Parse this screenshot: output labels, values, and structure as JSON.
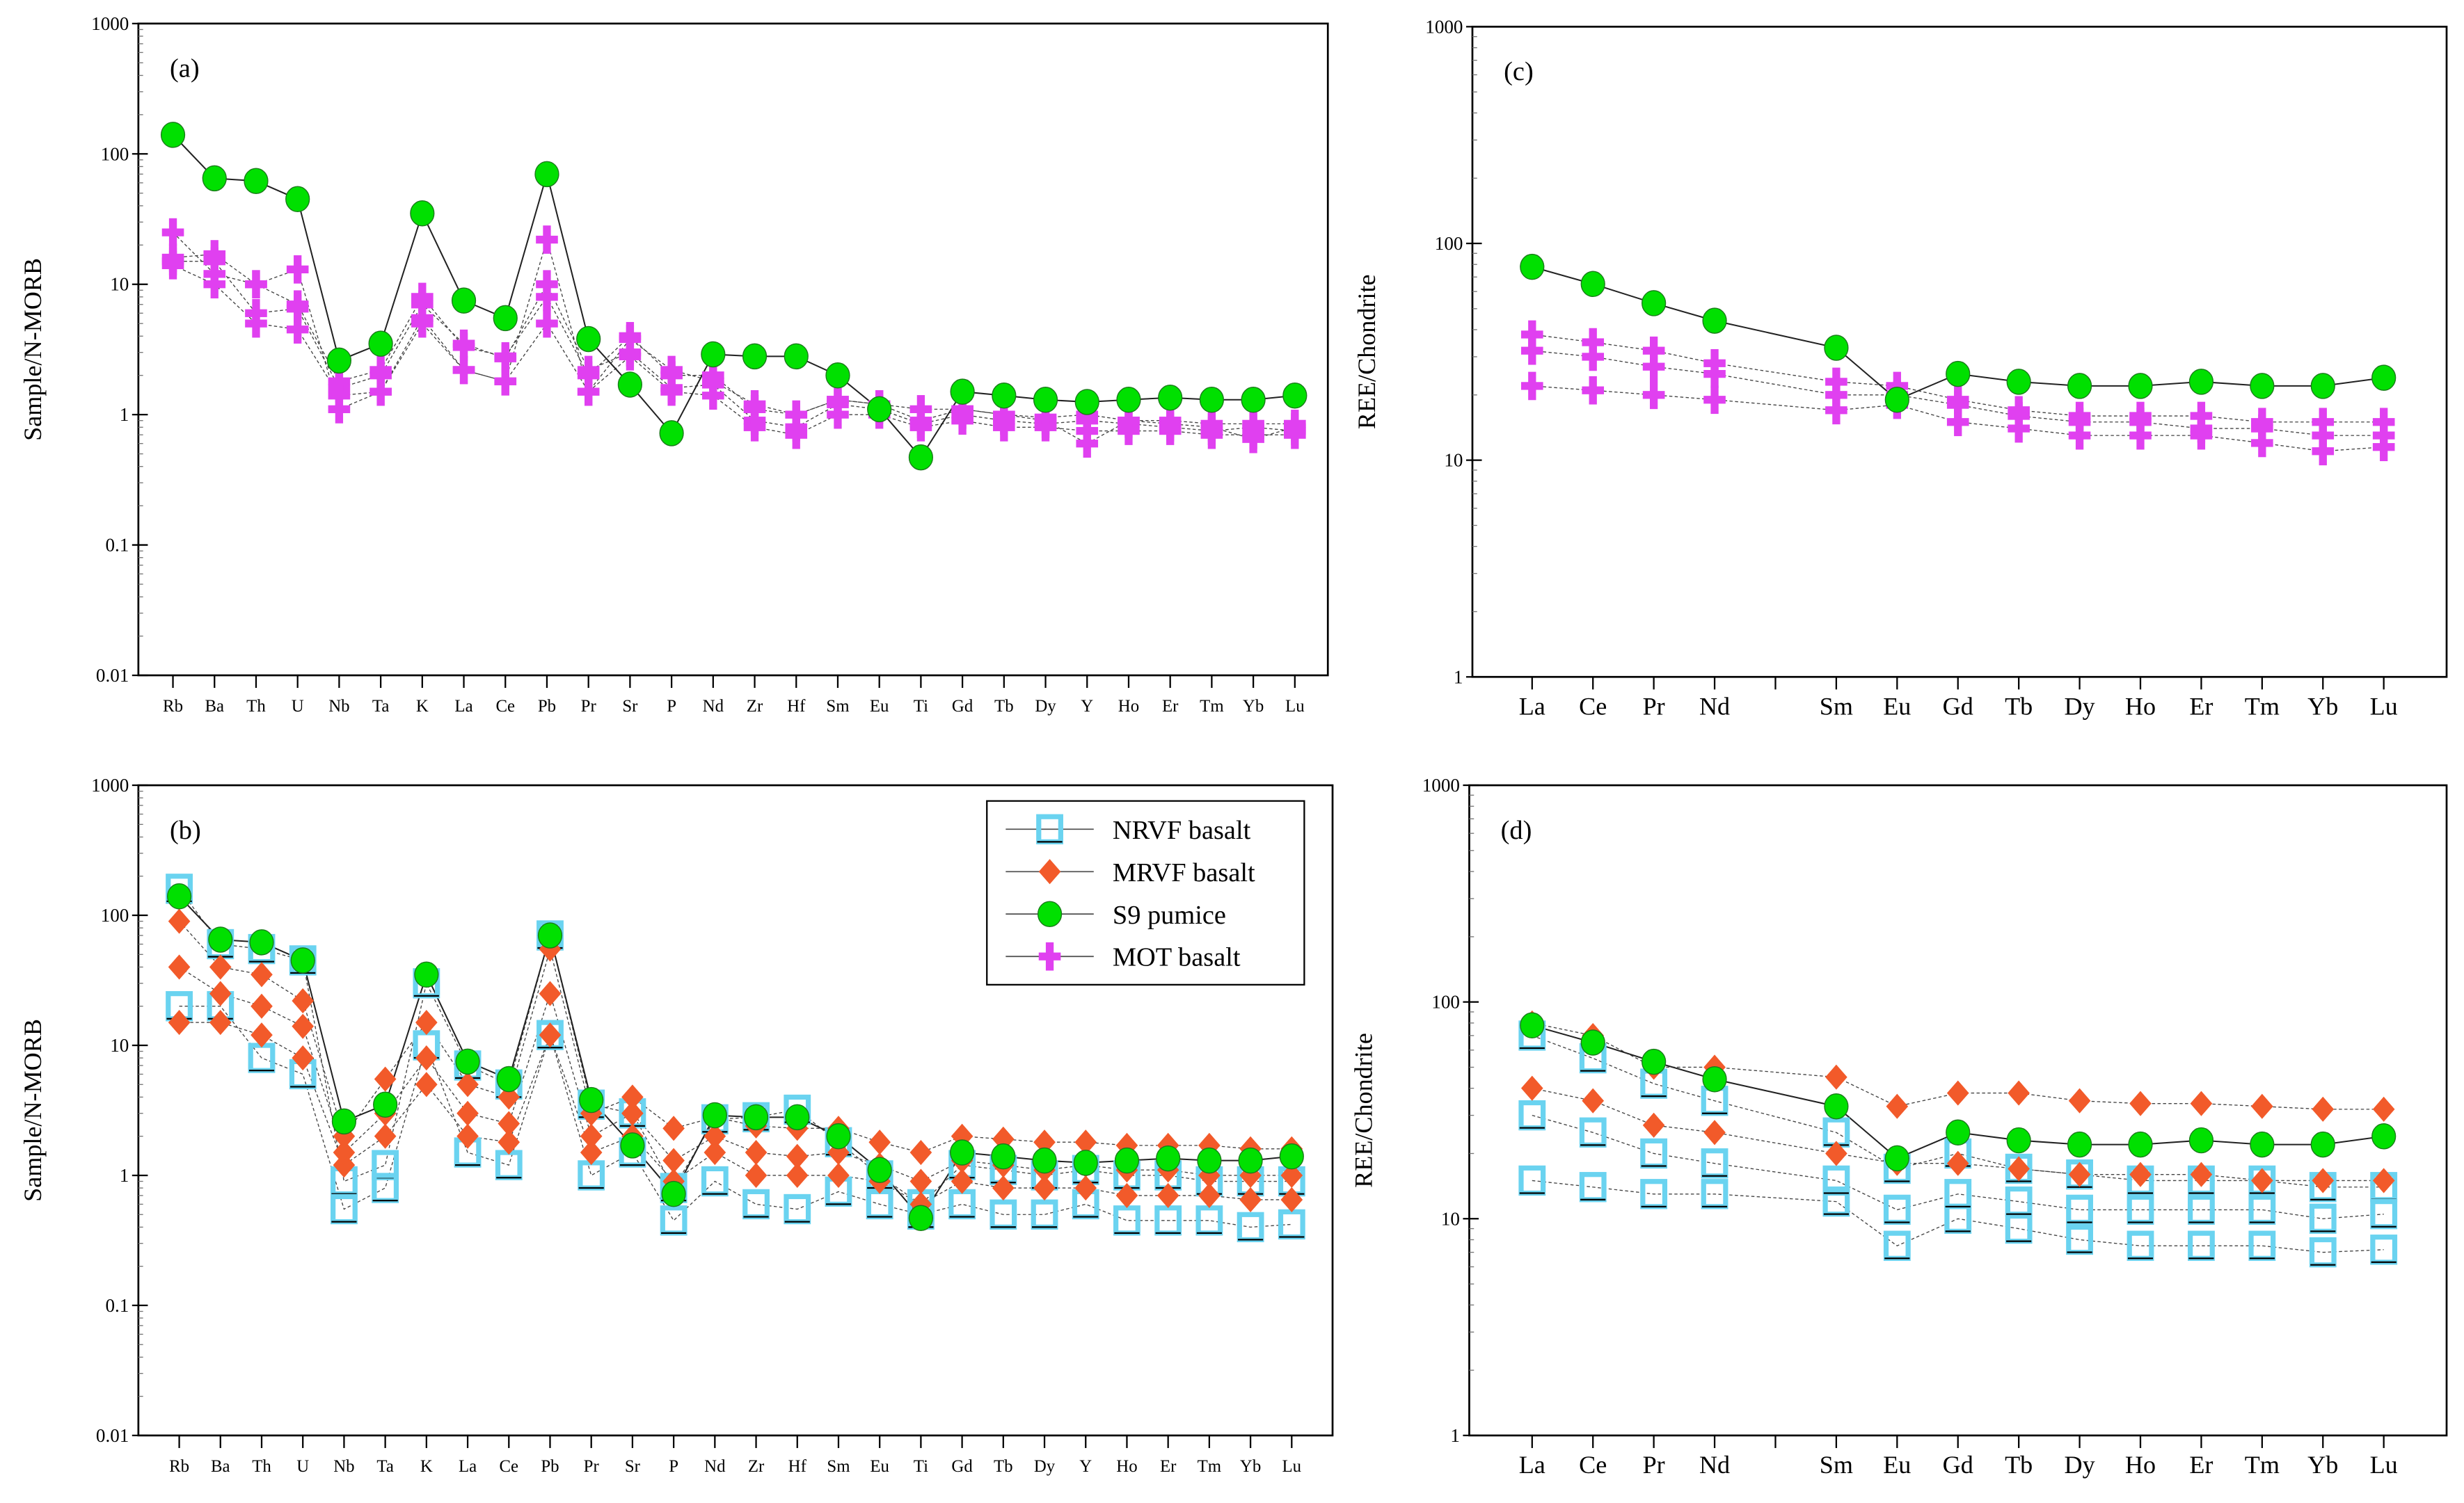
{
  "colors": {
    "nrvf": "#6ad3f0",
    "mrvf": "#f25a2a",
    "s9": "#00e000",
    "mot": "#e040f0"
  },
  "legend": [
    {
      "key": "nrvf",
      "label": "NRVF basalt",
      "marker": "square"
    },
    {
      "key": "mrvf",
      "label": "MRVF basalt",
      "marker": "diamond"
    },
    {
      "key": "s9",
      "label": "S9 pumice",
      "marker": "circle"
    },
    {
      "key": "mot",
      "label": "MOT basalt",
      "marker": "plus"
    }
  ],
  "chart_data": [
    {
      "id": "a",
      "panel_label": "(a)",
      "type": "line",
      "yscale": "log",
      "ylim": [
        0.01,
        1000
      ],
      "ylabel": "Sample/N-MORB",
      "xlabel": "",
      "yticks": [
        "1000",
        "100",
        "10",
        "1",
        "0.1",
        "0.01"
      ],
      "categories": [
        "Rb",
        "Ba",
        "Th",
        "U",
        "Nb",
        "Ta",
        "K",
        "La",
        "Ce",
        "Pb",
        "Pr",
        "Sr",
        "P",
        "Nd",
        "Zr",
        "Hf",
        "Sm",
        "Eu",
        "Ti",
        "Gd",
        "Tb",
        "Dy",
        "Y",
        "Ho",
        "Er",
        "Tm",
        "Yb",
        "Lu"
      ],
      "series": [
        {
          "group": "mot",
          "values": [
            25,
            12,
            10,
            13,
            1.1,
            1.5,
            5,
            2.2,
            1.8,
            22,
            1.5,
            3.8,
            2.2,
            1.8,
            1.2,
            1.0,
            1.3,
            1.2,
            1.1,
            1.1,
            1.0,
            0.9,
            0.6,
            0.9,
            0.85,
            0.8,
            0.65,
            0.8
          ]
        },
        {
          "group": "mot",
          "values": [
            15,
            15,
            6,
            6.5,
            1.6,
            2,
            7,
            3.5,
            2.7,
            10,
            2.2,
            3,
            1.6,
            1.7,
            0.9,
            0.8,
            1.2,
            1.1,
            0.85,
            1.0,
            0.9,
            0.85,
            0.9,
            0.85,
            0.8,
            0.75,
            0.8,
            0.75
          ]
        },
        {
          "group": "mot",
          "values": [
            14,
            10,
            5,
            4.5,
            1.4,
            1.5,
            5.5,
            2.2,
            1.8,
            5,
            1.5,
            2.8,
            1.5,
            1.4,
            0.8,
            0.7,
            1.0,
            1.0,
            0.8,
            0.9,
            0.8,
            0.8,
            0.75,
            0.75,
            0.75,
            0.7,
            0.7,
            0.7
          ]
        },
        {
          "group": "mot",
          "values": [
            16,
            17,
            10,
            7,
            1.8,
            2.2,
            8,
            3.3,
            2.8,
            8,
            2.0,
            4,
            2.0,
            2.0,
            1.1,
            1.0,
            1.3,
            1.2,
            0.9,
            1.1,
            1.0,
            0.95,
            1.0,
            0.9,
            0.9,
            0.85,
            0.85,
            0.85
          ]
        },
        {
          "group": "s9",
          "values": [
            140,
            65,
            62,
            45,
            2.6,
            3.5,
            35,
            7.5,
            5.5,
            70,
            3.8,
            1.7,
            0.72,
            2.9,
            2.8,
            2.8,
            2.0,
            1.1,
            0.47,
            1.5,
            1.4,
            1.3,
            1.25,
            1.3,
            1.35,
            1.3,
            1.3,
            1.4
          ]
        }
      ]
    },
    {
      "id": "b",
      "panel_label": "(b)",
      "type": "line",
      "yscale": "log",
      "ylim": [
        0.01,
        1000
      ],
      "ylabel": "Sample/N-MORB",
      "xlabel": "",
      "legend_position": "top-right",
      "yticks": [
        "1000",
        "100",
        "10",
        "1",
        "0.1",
        "0.01"
      ],
      "categories": [
        "Rb",
        "Ba",
        "Th",
        "U",
        "Nb",
        "Ta",
        "K",
        "La",
        "Ce",
        "Pb",
        "Pr",
        "Sr",
        "P",
        "Nd",
        "Zr",
        "Hf",
        "Sm",
        "Eu",
        "Ti",
        "Gd",
        "Tb",
        "Dy",
        "Y",
        "Ho",
        "Er",
        "Tm",
        "Yb",
        "Lu"
      ],
      "series": [
        {
          "group": "nrvf",
          "values": [
            160,
            60,
            55,
            45,
            0.9,
            1.2,
            30,
            7,
            5,
            70,
            3.5,
            3,
            0.8,
            2.7,
            2.8,
            3.2,
            1.8,
            1.0,
            0.6,
            1.2,
            1.1,
            1.0,
            1.1,
            1.0,
            1.0,
            0.9,
            0.9,
            0.9
          ]
        },
        {
          "group": "nrvf",
          "values": [
            20,
            20,
            8,
            6,
            0.55,
            0.8,
            10,
            1.5,
            1.2,
            12,
            1.0,
            1.5,
            0.45,
            0.9,
            0.6,
            0.55,
            0.75,
            0.6,
            0.5,
            0.6,
            0.5,
            0.5,
            0.6,
            0.45,
            0.45,
            0.45,
            0.4,
            0.42
          ]
        },
        {
          "group": "mrvf",
          "values": [
            90,
            40,
            35,
            22,
            2.0,
            5.5,
            15,
            5,
            4,
            55,
            3,
            4,
            2.3,
            2.8,
            2.4,
            2.3,
            2.3,
            1.8,
            1.5,
            2.0,
            1.9,
            1.8,
            1.8,
            1.7,
            1.7,
            1.7,
            1.6,
            1.6
          ]
        },
        {
          "group": "mrvf",
          "values": [
            15,
            15,
            12,
            8,
            1.2,
            2,
            5,
            2,
            1.8,
            12,
            1.5,
            2,
            0.9,
            1.5,
            1.0,
            1.0,
            1.0,
            0.9,
            0.6,
            0.9,
            0.8,
            0.8,
            0.8,
            0.7,
            0.7,
            0.7,
            0.65,
            0.65
          ]
        },
        {
          "group": "mrvf",
          "values": [
            40,
            25,
            20,
            14,
            1.5,
            3,
            8,
            3,
            2.5,
            25,
            2,
            3,
            1.3,
            2,
            1.5,
            1.4,
            1.5,
            1.2,
            0.9,
            1.3,
            1.2,
            1.1,
            1.2,
            1.1,
            1.1,
            1.0,
            1.0,
            1.0
          ]
        },
        {
          "group": "s9",
          "values": [
            140,
            65,
            62,
            45,
            2.6,
            3.5,
            35,
            7.5,
            5.5,
            70,
            3.8,
            1.7,
            0.72,
            2.9,
            2.8,
            2.8,
            2.0,
            1.1,
            0.47,
            1.5,
            1.4,
            1.3,
            1.25,
            1.3,
            1.35,
            1.3,
            1.3,
            1.4
          ]
        }
      ]
    },
    {
      "id": "c",
      "panel_label": "(c)",
      "type": "line",
      "yscale": "log",
      "ylim": [
        1,
        1000
      ],
      "ylabel": "REE/Chondrite",
      "xlabel": "",
      "yticks": [
        "1000",
        "100",
        "10",
        "1"
      ],
      "categories": [
        "La",
        "Ce",
        "Pr",
        "Nd",
        "Sm",
        "Eu",
        "Gd",
        "Tb",
        "Dy",
        "Ho",
        "Er",
        "Tm",
        "Yb",
        "Lu"
      ],
      "series": [
        {
          "group": "mot",
          "values": [
            38,
            35,
            32,
            28,
            23,
            22,
            19,
            17,
            16,
            16,
            16,
            15,
            15,
            15
          ]
        },
        {
          "group": "mot",
          "values": [
            22,
            21,
            20,
            19,
            17,
            18,
            15,
            14,
            13,
            13,
            13,
            12,
            11,
            11.5
          ]
        },
        {
          "group": "mot",
          "values": [
            32,
            30,
            27,
            25,
            20,
            20,
            18,
            16,
            15,
            15,
            14,
            14,
            13,
            13
          ]
        },
        {
          "group": "s9",
          "values": [
            78,
            65,
            53,
            44,
            33,
            19,
            25,
            23,
            22,
            22,
            23,
            22,
            22,
            24
          ]
        }
      ]
    },
    {
      "id": "d",
      "panel_label": "(d)",
      "type": "line",
      "yscale": "log",
      "ylim": [
        1,
        1000
      ],
      "ylabel": "REE/Chondrite",
      "xlabel": "",
      "yticks": [
        "1000",
        "100",
        "10",
        "1"
      ],
      "categories": [
        "La",
        "Ce",
        "Pr",
        "Nd",
        "Sm",
        "Eu",
        "Gd",
        "Tb",
        "Dy",
        "Ho",
        "Er",
        "Tm",
        "Yb",
        "Lu"
      ],
      "series": [
        {
          "group": "nrvf",
          "values": [
            70,
            55,
            42,
            35,
            25,
            17,
            20,
            17,
            16,
            15,
            15,
            15,
            14,
            14
          ]
        },
        {
          "group": "nrvf",
          "values": [
            15,
            14,
            13,
            13,
            12,
            7.5,
            10,
            9,
            8,
            7.5,
            7.5,
            7.5,
            7,
            7.2
          ]
        },
        {
          "group": "nrvf",
          "values": [
            30,
            25,
            20,
            18,
            15,
            11,
            13,
            12,
            11,
            11,
            11,
            11,
            10,
            10.5
          ]
        },
        {
          "group": "mrvf",
          "values": [
            80,
            70,
            50,
            50,
            45,
            33,
            38,
            38,
            35,
            34,
            34,
            33,
            32,
            32
          ]
        },
        {
          "group": "mrvf",
          "values": [
            40,
            35,
            27,
            25,
            20,
            18,
            18,
            17,
            16,
            16,
            16,
            15,
            15,
            15
          ]
        },
        {
          "group": "s9",
          "values": [
            78,
            65,
            53,
            44,
            33,
            19,
            25,
            23,
            22,
            22,
            23,
            22,
            22,
            24
          ]
        }
      ]
    }
  ]
}
